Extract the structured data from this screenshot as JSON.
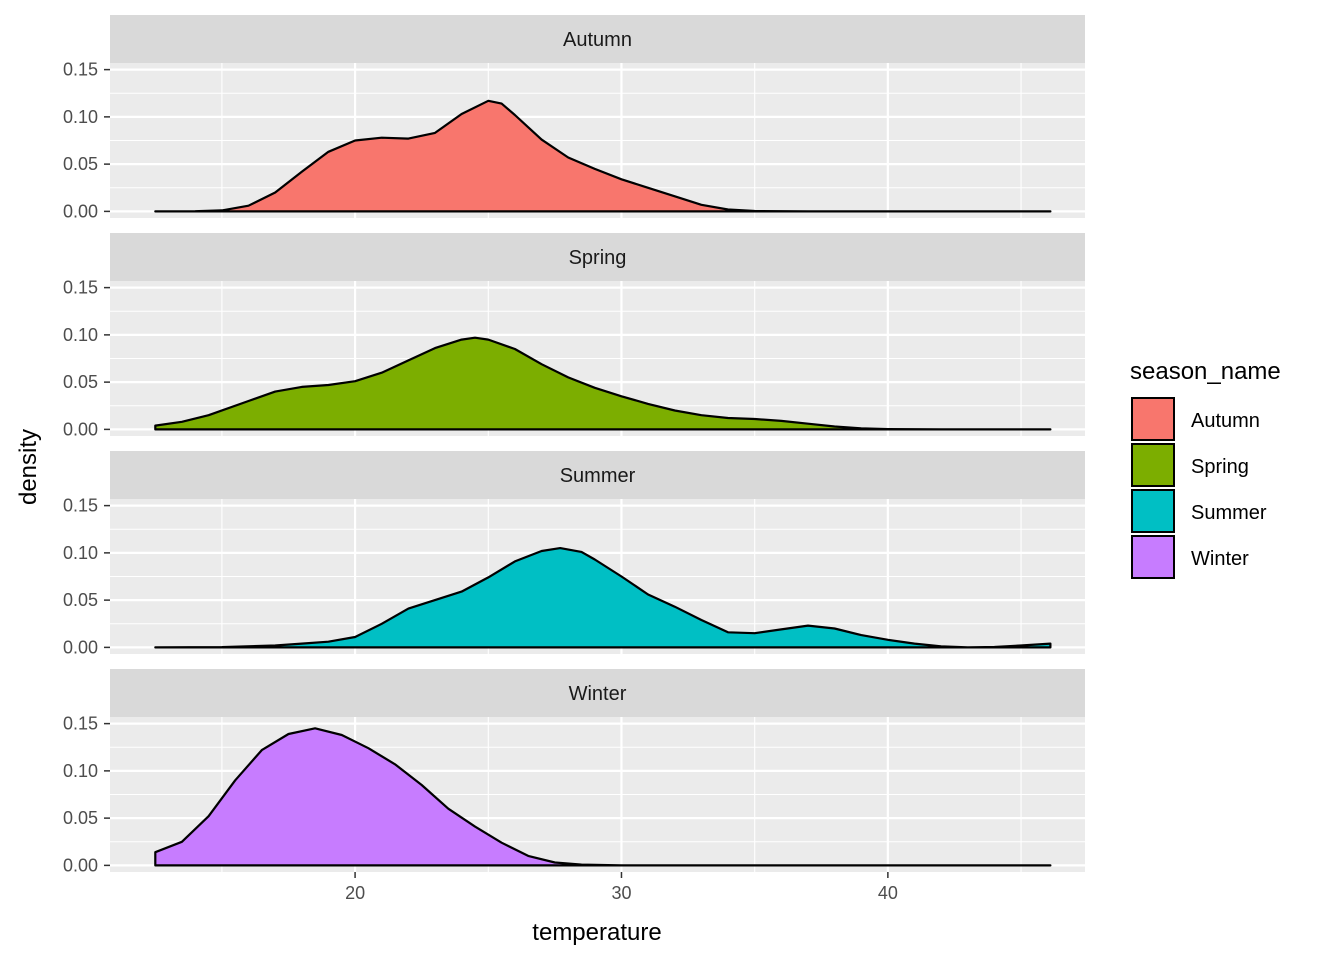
{
  "chart_data": {
    "type": "area",
    "subtype": "faceted-density",
    "xlabel": "temperature",
    "ylabel": "density",
    "xlim": [
      10.8,
      47.4
    ],
    "ylim": [
      -0.007,
      0.157
    ],
    "x_ticks": [
      20,
      30,
      40
    ],
    "x_tick_labels": [
      "20",
      "30",
      "40"
    ],
    "y_ticks": [
      0,
      0.05,
      0.1,
      0.15
    ],
    "y_tick_labels": [
      "0.00",
      "0.05",
      "0.10",
      "0.15"
    ],
    "legend_title": "season_name",
    "legend_position": "right",
    "grid": true,
    "facets": [
      {
        "name": "Autumn",
        "color": "#F8766D",
        "points": [
          [
            12.5,
            0
          ],
          [
            14,
            0.0002
          ],
          [
            15,
            0.001
          ],
          [
            16,
            0.006
          ],
          [
            17,
            0.02
          ],
          [
            18,
            0.042
          ],
          [
            19,
            0.063
          ],
          [
            20,
            0.075
          ],
          [
            21,
            0.078
          ],
          [
            22,
            0.077
          ],
          [
            23,
            0.083
          ],
          [
            24,
            0.103
          ],
          [
            25,
            0.117
          ],
          [
            25.5,
            0.114
          ],
          [
            26,
            0.102
          ],
          [
            27,
            0.076
          ],
          [
            28,
            0.057
          ],
          [
            29,
            0.045
          ],
          [
            30,
            0.034
          ],
          [
            31,
            0.025
          ],
          [
            32,
            0.016
          ],
          [
            33,
            0.007
          ],
          [
            34,
            0.002
          ],
          [
            35,
            0.0004
          ],
          [
            37,
            0
          ],
          [
            46.1,
            0
          ]
        ]
      },
      {
        "name": "Spring",
        "color": "#7CAE00",
        "points": [
          [
            12.5,
            0.004
          ],
          [
            13.5,
            0.008
          ],
          [
            14.5,
            0.015
          ],
          [
            16,
            0.03
          ],
          [
            17,
            0.04
          ],
          [
            18,
            0.045
          ],
          [
            19,
            0.047
          ],
          [
            20,
            0.051
          ],
          [
            21,
            0.06
          ],
          [
            22,
            0.073
          ],
          [
            23,
            0.086
          ],
          [
            24,
            0.095
          ],
          [
            24.5,
            0.097
          ],
          [
            25,
            0.095
          ],
          [
            26,
            0.085
          ],
          [
            27,
            0.069
          ],
          [
            28,
            0.055
          ],
          [
            29,
            0.044
          ],
          [
            30,
            0.035
          ],
          [
            31,
            0.027
          ],
          [
            32,
            0.02
          ],
          [
            33,
            0.015
          ],
          [
            34,
            0.012
          ],
          [
            35,
            0.011
          ],
          [
            36,
            0.009
          ],
          [
            37,
            0.006
          ],
          [
            38,
            0.003
          ],
          [
            39,
            0.001
          ],
          [
            40,
            0.0003
          ],
          [
            42,
            0
          ],
          [
            46.1,
            0
          ]
        ]
      },
      {
        "name": "Summer",
        "color": "#00BFC4",
        "points": [
          [
            12.5,
            0
          ],
          [
            15,
            0.0003
          ],
          [
            17,
            0.002
          ],
          [
            18,
            0.004
          ],
          [
            19,
            0.006
          ],
          [
            20,
            0.011
          ],
          [
            21,
            0.025
          ],
          [
            22,
            0.041
          ],
          [
            23,
            0.05
          ],
          [
            24,
            0.059
          ],
          [
            25,
            0.074
          ],
          [
            26,
            0.091
          ],
          [
            27,
            0.102
          ],
          [
            27.7,
            0.105
          ],
          [
            28.5,
            0.101
          ],
          [
            29,
            0.093
          ],
          [
            30,
            0.075
          ],
          [
            31,
            0.056
          ],
          [
            32,
            0.043
          ],
          [
            33,
            0.029
          ],
          [
            34,
            0.016
          ],
          [
            35,
            0.015
          ],
          [
            36,
            0.019
          ],
          [
            37,
            0.023
          ],
          [
            38,
            0.02
          ],
          [
            39,
            0.013
          ],
          [
            40,
            0.008
          ],
          [
            41,
            0.004
          ],
          [
            42,
            0.001
          ],
          [
            43,
            0
          ],
          [
            44,
            0.0004
          ],
          [
            45,
            0.002
          ],
          [
            46.1,
            0.004
          ]
        ]
      },
      {
        "name": "Winter",
        "color": "#C77CFF",
        "points": [
          [
            12.5,
            0.014
          ],
          [
            13.5,
            0.025
          ],
          [
            14.5,
            0.052
          ],
          [
            15.5,
            0.09
          ],
          [
            16.5,
            0.122
          ],
          [
            17.5,
            0.139
          ],
          [
            18.5,
            0.145
          ],
          [
            19.5,
            0.138
          ],
          [
            20.5,
            0.124
          ],
          [
            21.5,
            0.107
          ],
          [
            22.5,
            0.085
          ],
          [
            23.5,
            0.06
          ],
          [
            24.5,
            0.041
          ],
          [
            25.5,
            0.024
          ],
          [
            26.5,
            0.01
          ],
          [
            27.5,
            0.003
          ],
          [
            28.5,
            0.0008
          ],
          [
            30,
            0
          ],
          [
            46.1,
            0
          ]
        ]
      }
    ]
  }
}
